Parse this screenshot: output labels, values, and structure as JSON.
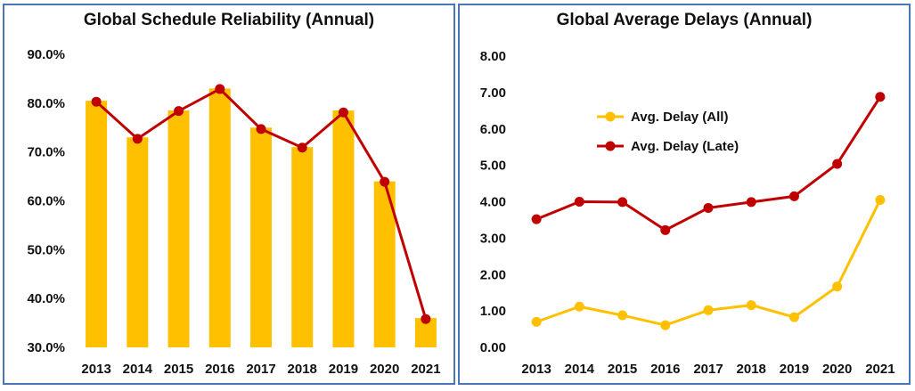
{
  "charts": {
    "left": {
      "title": "Global Schedule Reliability (Annual)"
    },
    "right": {
      "title": "Global Average Delays (Annual)"
    }
  },
  "colors": {
    "bar": "#FFC000",
    "gold_line": "#FFC000",
    "red_line": "#C00000",
    "frame": "#4A76B8"
  },
  "chart_data": [
    {
      "type": "bar",
      "title": "Global Schedule Reliability (Annual)",
      "categories": [
        "2013",
        "2014",
        "2015",
        "2016",
        "2017",
        "2018",
        "2019",
        "2020",
        "2021"
      ],
      "series": [
        {
          "type": "bar",
          "values": [
            80.5,
            73.0,
            78.5,
            83.0,
            75.0,
            71.0,
            78.5,
            64.0,
            36.0
          ]
        },
        {
          "type": "line",
          "values": [
            80.3,
            72.7,
            78.4,
            82.9,
            74.7,
            70.9,
            78.1,
            63.9,
            35.8
          ]
        }
      ],
      "ylim": [
        30,
        90
      ],
      "yticks": [
        "30.0%",
        "40.0%",
        "50.0%",
        "60.0%",
        "70.0%",
        "80.0%",
        "90.0%"
      ],
      "grid": false,
      "legend": "none"
    },
    {
      "type": "line",
      "title": "Global Average Delays (Annual)",
      "categories": [
        "2013",
        "2014",
        "2015",
        "2016",
        "2017",
        "2018",
        "2019",
        "2020",
        "2021"
      ],
      "series": [
        {
          "name": "Avg. Delay (All)",
          "color": "#FFC000",
          "values": [
            0.7,
            1.12,
            0.88,
            0.61,
            1.02,
            1.16,
            0.83,
            1.67,
            4.05
          ]
        },
        {
          "name": "Avg. Delay (Late)",
          "color": "#C00000",
          "values": [
            3.52,
            4.0,
            3.99,
            3.22,
            3.83,
            3.99,
            4.15,
            5.04,
            6.88
          ]
        }
      ],
      "ylim": [
        0,
        8
      ],
      "yticks": [
        "0.00",
        "1.00",
        "2.00",
        "3.00",
        "4.00",
        "5.00",
        "6.00",
        "7.00",
        "8.00"
      ],
      "grid": false,
      "legend": "top-left"
    }
  ]
}
